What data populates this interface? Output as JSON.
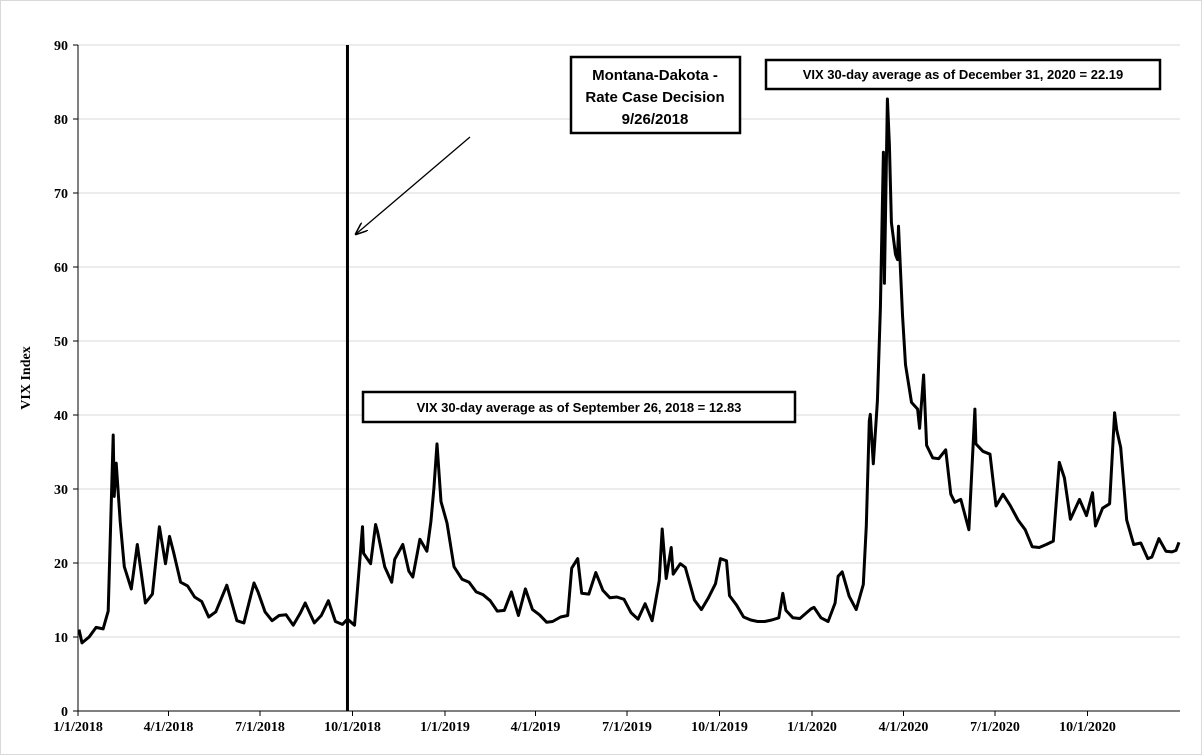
{
  "chart_data": {
    "type": "line",
    "y_label": "VIX Index",
    "color": "#000000",
    "grid": true,
    "event_date": "2018-09-26",
    "annotations": [
      {
        "lines": [
          "Montana-Dakota -",
          "Rate Case Decision",
          "9/26/2018"
        ]
      },
      {
        "lines": [
          "VIX 30-day average as of December 31, 2020 = 22.19"
        ]
      },
      {
        "lines": [
          "VIX 30-day average as of September 26, 2018 = 12.83"
        ]
      }
    ],
    "xlim": [
      "2018-01-01",
      "2021-01-01"
    ],
    "xticks": [
      {
        "value": "2018-01-01",
        "label": "1/1/2018"
      },
      {
        "value": "2018-04-01",
        "label": "4/1/2018"
      },
      {
        "value": "2018-07-01",
        "label": "7/1/2018"
      },
      {
        "value": "2018-10-01",
        "label": "10/1/2018"
      },
      {
        "value": "2019-01-01",
        "label": "1/1/2019"
      },
      {
        "value": "2019-04-01",
        "label": "4/1/2019"
      },
      {
        "value": "2019-07-01",
        "label": "7/1/2019"
      },
      {
        "value": "2019-10-01",
        "label": "10/1/2019"
      },
      {
        "value": "2020-01-01",
        "label": "1/1/2020"
      },
      {
        "value": "2020-04-01",
        "label": "4/1/2020"
      },
      {
        "value": "2020-07-01",
        "label": "7/1/2020"
      },
      {
        "value": "2020-10-01",
        "label": "10/1/2020"
      }
    ],
    "ylim": [
      0,
      90
    ],
    "yticks": [
      0,
      10,
      20,
      30,
      40,
      50,
      60,
      70,
      80,
      90
    ],
    "x": [
      "2018-01-02",
      "2018-01-05",
      "2018-01-12",
      "2018-01-19",
      "2018-01-26",
      "2018-01-31",
      "2018-02-05",
      "2018-02-06",
      "2018-02-08",
      "2018-02-12",
      "2018-02-16",
      "2018-02-23",
      "2018-03-01",
      "2018-03-09",
      "2018-03-16",
      "2018-03-23",
      "2018-03-29",
      "2018-04-02",
      "2018-04-06",
      "2018-04-13",
      "2018-04-20",
      "2018-04-27",
      "2018-05-04",
      "2018-05-11",
      "2018-05-18",
      "2018-05-29",
      "2018-06-08",
      "2018-06-15",
      "2018-06-25",
      "2018-06-29",
      "2018-07-06",
      "2018-07-13",
      "2018-07-20",
      "2018-07-27",
      "2018-08-03",
      "2018-08-10",
      "2018-08-15",
      "2018-08-24",
      "2018-08-31",
      "2018-09-07",
      "2018-09-14",
      "2018-09-21",
      "2018-09-26",
      "2018-10-03",
      "2018-10-05",
      "2018-10-11",
      "2018-10-12",
      "2018-10-19",
      "2018-10-24",
      "2018-10-26",
      "2018-11-02",
      "2018-11-09",
      "2018-11-12",
      "2018-11-20",
      "2018-11-26",
      "2018-11-30",
      "2018-12-07",
      "2018-12-14",
      "2018-12-18",
      "2018-12-21",
      "2018-12-24",
      "2018-12-28",
      "2019-01-03",
      "2019-01-10",
      "2019-01-18",
      "2019-01-25",
      "2019-02-01",
      "2019-02-08",
      "2019-02-15",
      "2019-02-22",
      "2019-03-01",
      "2019-03-08",
      "2019-03-15",
      "2019-03-22",
      "2019-03-29",
      "2019-04-05",
      "2019-04-12",
      "2019-04-18",
      "2019-04-26",
      "2019-05-03",
      "2019-05-07",
      "2019-05-13",
      "2019-05-17",
      "2019-05-24",
      "2019-05-31",
      "2019-06-07",
      "2019-06-14",
      "2019-06-21",
      "2019-06-28",
      "2019-07-05",
      "2019-07-12",
      "2019-07-19",
      "2019-07-26",
      "2019-08-02",
      "2019-08-05",
      "2019-08-09",
      "2019-08-14",
      "2019-08-16",
      "2019-08-23",
      "2019-08-28",
      "2019-09-06",
      "2019-09-13",
      "2019-09-20",
      "2019-09-27",
      "2019-10-02",
      "2019-10-08",
      "2019-10-11",
      "2019-10-18",
      "2019-10-25",
      "2019-11-01",
      "2019-11-08",
      "2019-11-15",
      "2019-11-22",
      "2019-11-29",
      "2019-12-03",
      "2019-12-06",
      "2019-12-13",
      "2019-12-20",
      "2019-12-31",
      "2020-01-03",
      "2020-01-10",
      "2020-01-17",
      "2020-01-24",
      "2020-01-27",
      "2020-01-31",
      "2020-02-07",
      "2020-02-14",
      "2020-02-21",
      "2020-02-24",
      "2020-02-27",
      "2020-02-28",
      "2020-03-02",
      "2020-03-05",
      "2020-03-06",
      "2020-03-09",
      "2020-03-12",
      "2020-03-13",
      "2020-03-16",
      "2020-03-18",
      "2020-03-20",
      "2020-03-24",
      "2020-03-26",
      "2020-03-27",
      "2020-03-31",
      "2020-04-03",
      "2020-04-09",
      "2020-04-15",
      "2020-04-17",
      "2020-04-21",
      "2020-04-24",
      "2020-04-30",
      "2020-05-06",
      "2020-05-13",
      "2020-05-18",
      "2020-05-22",
      "2020-05-28",
      "2020-06-05",
      "2020-06-11",
      "2020-06-12",
      "2020-06-19",
      "2020-06-26",
      "2020-07-02",
      "2020-07-09",
      "2020-07-16",
      "2020-07-24",
      "2020-07-31",
      "2020-08-07",
      "2020-08-14",
      "2020-08-21",
      "2020-08-28",
      "2020-09-03",
      "2020-09-08",
      "2020-09-14",
      "2020-09-23",
      "2020-09-30",
      "2020-10-06",
      "2020-10-09",
      "2020-10-16",
      "2020-10-23",
      "2020-10-28",
      "2020-10-30",
      "2020-11-03",
      "2020-11-09",
      "2020-11-16",
      "2020-11-23",
      "2020-11-30",
      "2020-12-04",
      "2020-12-11",
      "2020-12-18",
      "2020-12-24",
      "2020-12-28",
      "2020-12-31"
    ],
    "values": [
      11,
      9.2,
      10,
      11.3,
      11.1,
      13.5,
      37.3,
      29,
      33.5,
      25.6,
      19.5,
      16.5,
      22.5,
      14.6,
      15.8,
      24.9,
      19.9,
      23.6,
      21.5,
      17.4,
      16.9,
      15.4,
      14.8,
      12.7,
      13.4,
      17,
      12.2,
      11.9,
      17.3,
      16.1,
      13.4,
      12.2,
      12.9,
      13,
      11.6,
      13.2,
      14.6,
      11.9,
      12.9,
      14.9,
      12.1,
      11.7,
      12.4,
      11.6,
      14.8,
      24.9,
      21.3,
      19.9,
      25.2,
      24.2,
      19.5,
      17.4,
      20.5,
      22.5,
      18.9,
      18.1,
      23.2,
      21.6,
      25.6,
      30.1,
      36.1,
      28.3,
      25.4,
      19.5,
      17.8,
      17.4,
      16.1,
      15.7,
      14.9,
      13.5,
      13.6,
      16.1,
      12.9,
      16.5,
      13.7,
      13,
      12,
      12.1,
      12.7,
      12.9,
      19.3,
      20.6,
      15.9,
      15.8,
      18.7,
      16.3,
      15.3,
      15.4,
      15.1,
      13.3,
      12.4,
      14.5,
      12.2,
      17.6,
      24.6,
      17.9,
      22.1,
      18.5,
      19.9,
      19.4,
      15,
      13.7,
      15.3,
      17.2,
      20.6,
      20.3,
      15.6,
      14.3,
      12.7,
      12.3,
      12.1,
      12.1,
      12.3,
      12.6,
      15.9,
      13.6,
      12.6,
      12.5,
      13.8,
      14,
      12.6,
      12.1,
      14.6,
      18.2,
      18.8,
      15.5,
      13.7,
      17.1,
      25,
      39.2,
      40.1,
      33.4,
      39.6,
      41.9,
      54.5,
      75.5,
      57.8,
      82.7,
      76.5,
      66,
      61.7,
      61,
      65.5,
      53.5,
      46.8,
      41.7,
      40.8,
      38.2,
      45.4,
      35.9,
      34.2,
      34.1,
      35.3,
      29.3,
      28.2,
      28.6,
      24.5,
      40.8,
      36.1,
      35.1,
      34.7,
      27.7,
      29.3,
      27.8,
      25.8,
      24.5,
      22.2,
      22.1,
      22.5,
      22.96,
      33.6,
      31.5,
      25.9,
      28.6,
      26.4,
      29.5,
      25,
      27.4,
      28,
      40.3,
      38,
      35.6,
      25.8,
      22.5,
      22.7,
      20.6,
      20.8,
      23.3,
      21.6,
      21.5,
      21.7,
      22.8
    ]
  }
}
